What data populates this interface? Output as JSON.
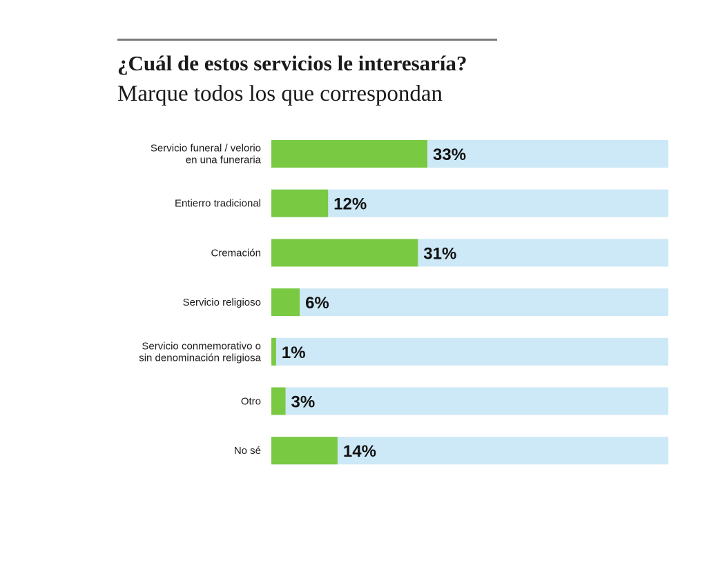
{
  "header": {
    "title": "¿Cuál de estos servicios le interesaría?",
    "subtitle": "Marque todos los que correspondan"
  },
  "colors": {
    "bar_fill": "#7ac943",
    "bar_track": "#cde8f6",
    "rule": "#7a7a7a"
  },
  "chart_data": {
    "type": "bar",
    "orientation": "horizontal",
    "title": "¿Cuál de estos servicios le interesaría?",
    "subtitle": "Marque todos los que correspondan",
    "categories": [
      [
        "Servicio funeral / velorio",
        "en una funeraria"
      ],
      [
        "Entierro tradicional"
      ],
      [
        "Cremación"
      ],
      [
        "Servicio religioso"
      ],
      [
        "Servicio conmemorativo o",
        "sin denominación religiosa"
      ],
      [
        "Otro"
      ],
      [
        "No sé"
      ]
    ],
    "values": [
      33,
      12,
      31,
      6,
      1,
      3,
      14
    ],
    "value_labels": [
      "33%",
      "12%",
      "31%",
      "6%",
      "1%",
      "3%",
      "14%"
    ],
    "xlim": [
      0,
      100
    ],
    "grid": false,
    "legend": "none"
  }
}
